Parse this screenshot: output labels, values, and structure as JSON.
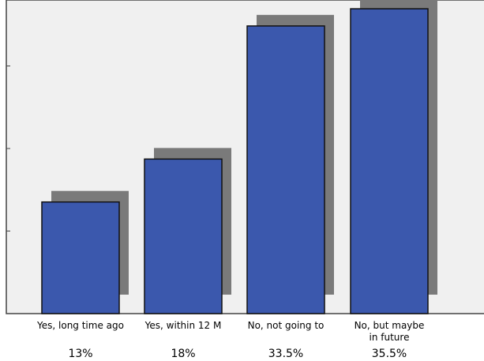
{
  "chart_data": {
    "type": "bar",
    "categories": [
      [
        "Yes, long time ago"
      ],
      [
        "Yes, within 12 M"
      ],
      [
        "No, not going to"
      ],
      [
        "No, but maybe",
        "in future"
      ]
    ],
    "values": [
      13,
      18,
      33.5,
      35.5
    ],
    "value_labels": [
      "13%",
      "18%",
      "33.5%",
      "35.5%"
    ],
    "ylim": [
      0,
      40
    ],
    "title": "",
    "xlabel": "",
    "ylabel": "",
    "grid": false,
    "legend": "none",
    "style": "3d-shadow",
    "colors": {
      "bar": "#3b58ad",
      "bar_border": "#111111",
      "shadow": "#7a7a7a",
      "plot_bg": "#f0f0f0",
      "axis": "#444444"
    }
  }
}
